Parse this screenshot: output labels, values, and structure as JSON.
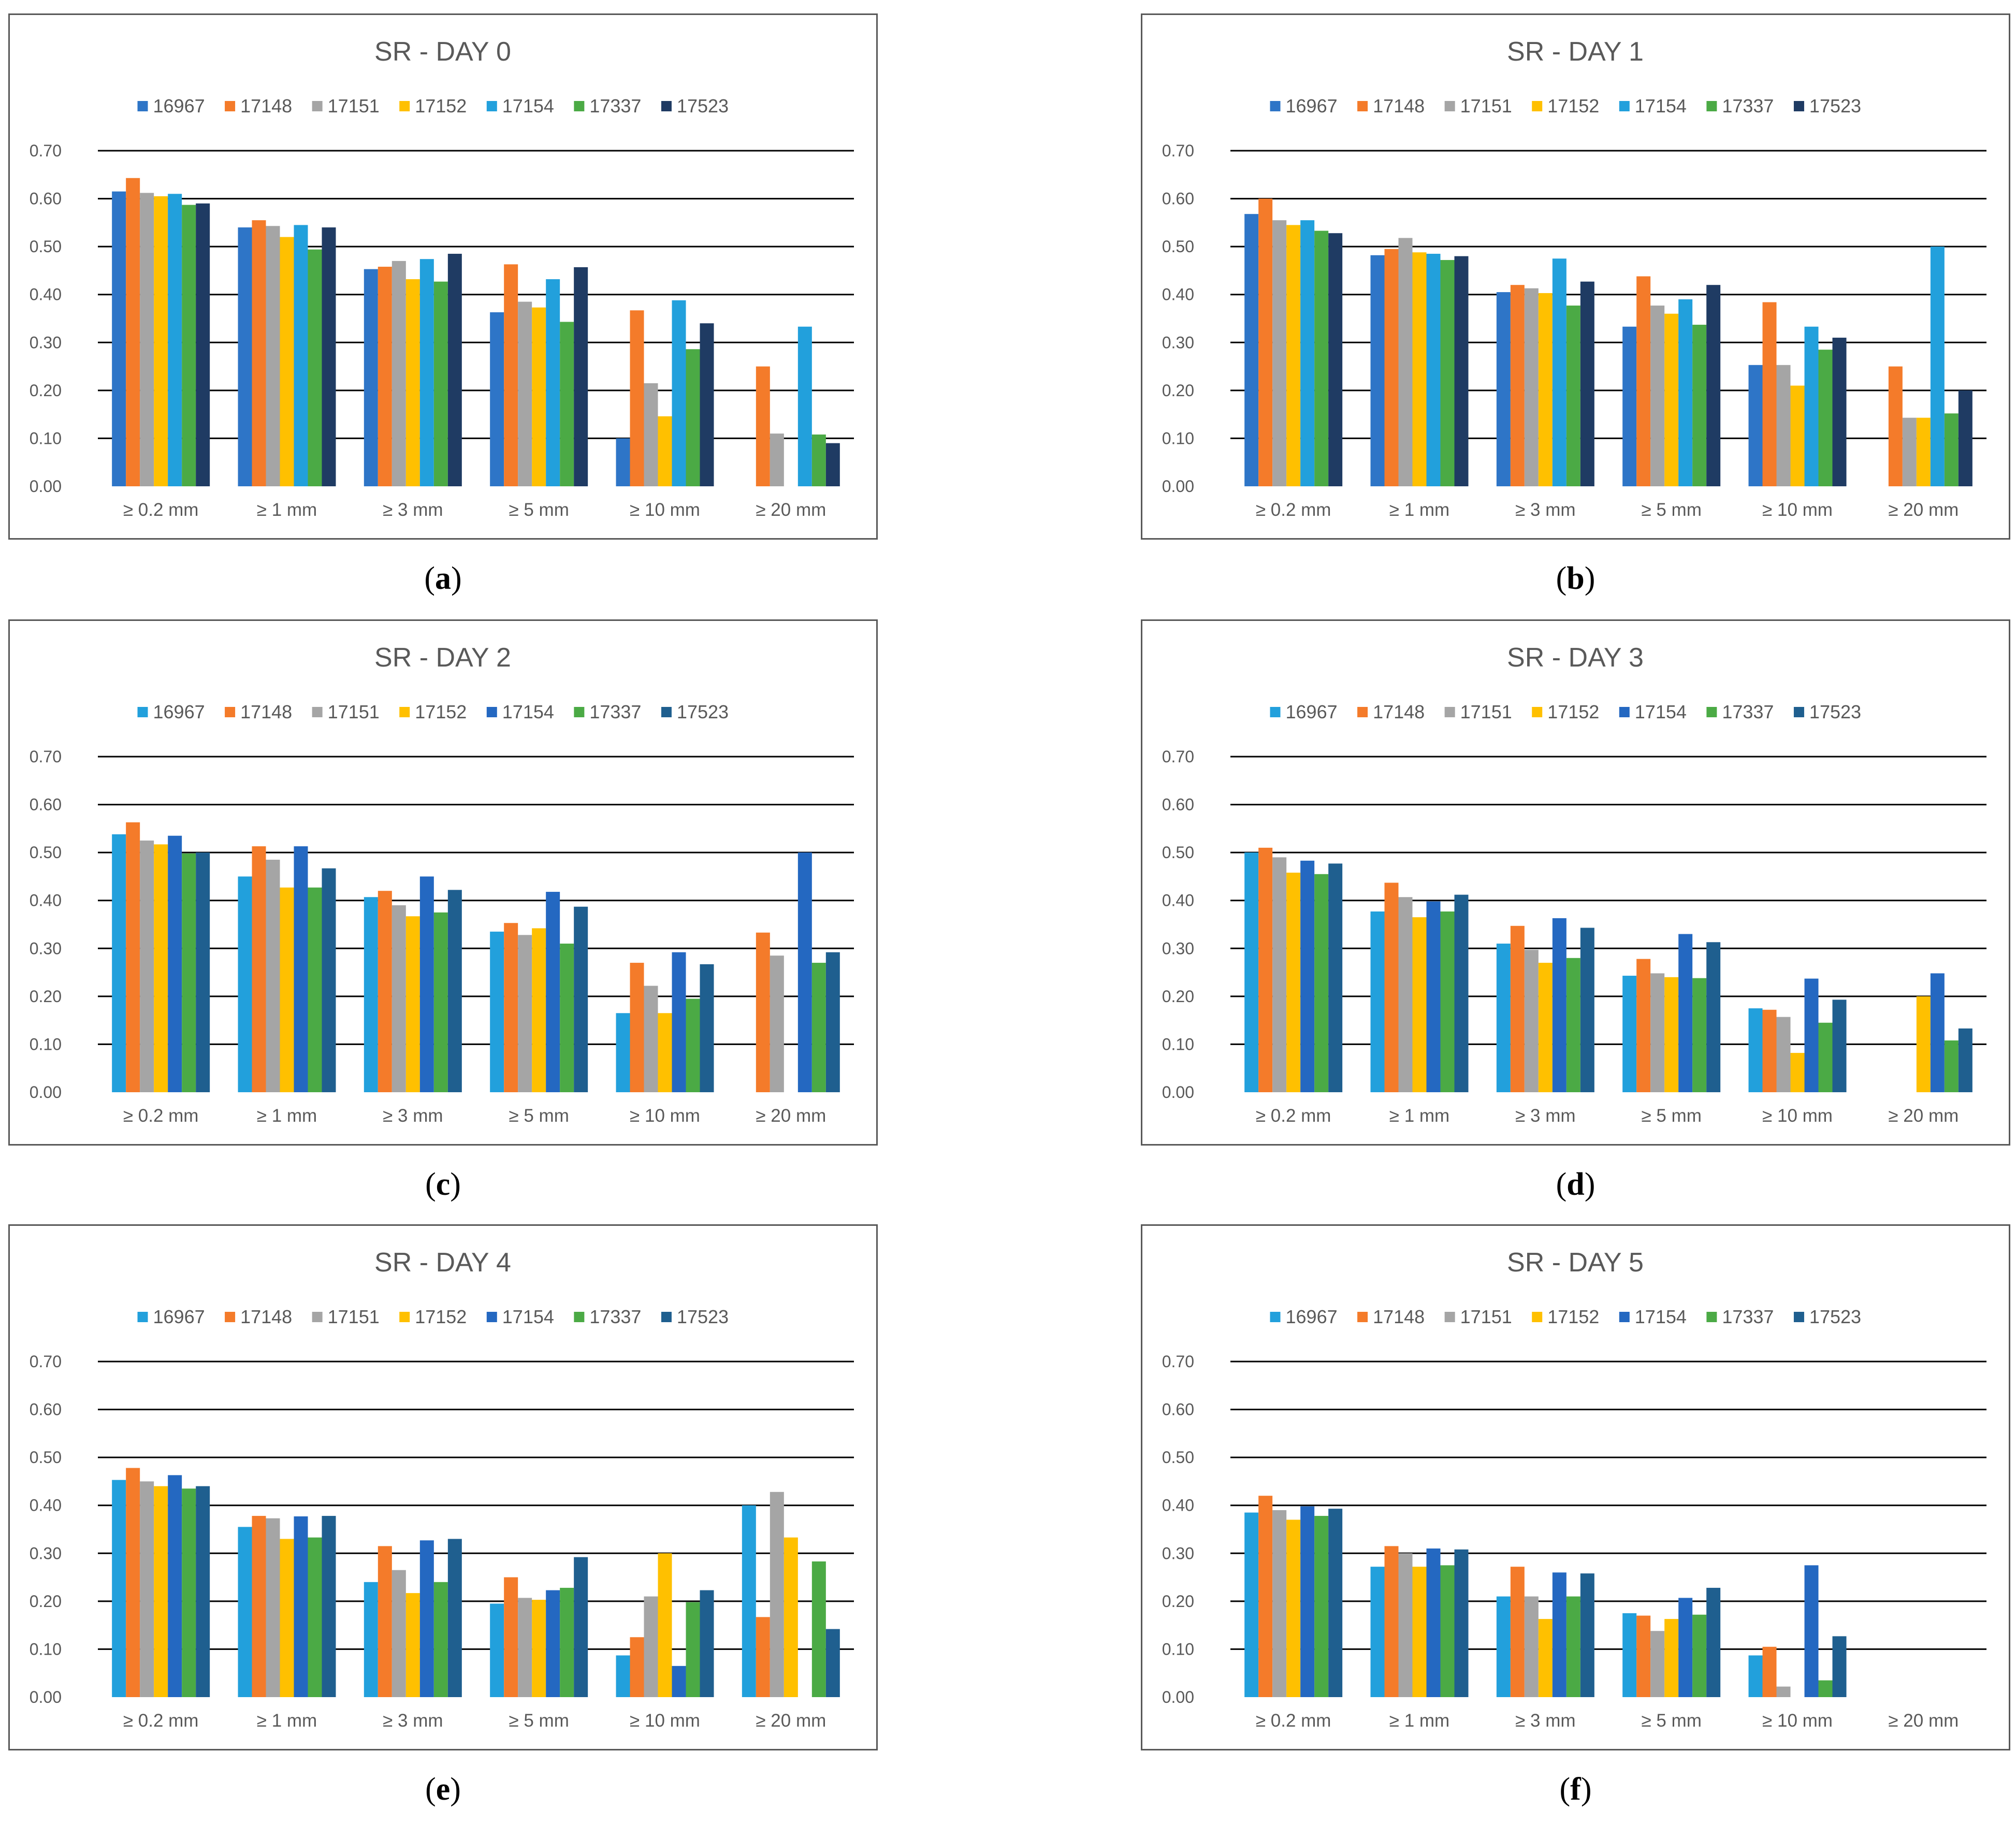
{
  "colors": {
    "set_a": [
      "#2E75C7",
      "#F47B2A",
      "#A5A5A5",
      "#FFC000",
      "#22A0DC",
      "#4BAA45",
      "#1F3B63"
    ],
    "set_b": [
      "#22A0DC",
      "#F47B2A",
      "#A5A5A5",
      "#FFC000",
      "#2468C1",
      "#4BAA45",
      "#1F5F8F"
    ],
    "gridline": "#000000",
    "text": "#595959"
  },
  "chart_data": [
    {
      "type": "bar",
      "panel": "a",
      "title": "SR - DAY 0",
      "categories": [
        "≥ 0.2 mm",
        "≥ 1 mm",
        "≥ 3 mm",
        "≥ 5 mm",
        "≥ 10 mm",
        "≥ 20 mm"
      ],
      "yticks": [
        "0.00",
        "0.10",
        "0.20",
        "0.30",
        "0.40",
        "0.50",
        "0.60",
        "0.70"
      ],
      "ylim": [
        0,
        0.7
      ],
      "palette": "set_a",
      "series": [
        {
          "name": "16967",
          "values": [
            0.615,
            0.54,
            0.453,
            0.363,
            0.1,
            0
          ]
        },
        {
          "name": "17148",
          "values": [
            0.643,
            0.555,
            0.458,
            0.463,
            0.367,
            0.25
          ]
        },
        {
          "name": "17151",
          "values": [
            0.612,
            0.543,
            0.47,
            0.385,
            0.215,
            0.11
          ]
        },
        {
          "name": "17152",
          "values": [
            0.605,
            0.52,
            0.432,
            0.373,
            0.146,
            0
          ]
        },
        {
          "name": "17154",
          "values": [
            0.61,
            0.545,
            0.474,
            0.432,
            0.388,
            0.333
          ]
        },
        {
          "name": "17337",
          "values": [
            0.587,
            0.494,
            0.427,
            0.343,
            0.286,
            0.108
          ]
        },
        {
          "name": "17523",
          "values": [
            0.59,
            0.54,
            0.485,
            0.457,
            0.34,
            0.09
          ]
        }
      ]
    },
    {
      "type": "bar",
      "panel": "b",
      "title": "SR - DAY 1",
      "categories": [
        "≥ 0.2 mm",
        "≥ 1 mm",
        "≥ 3 mm",
        "≥ 5 mm",
        "≥ 10 mm",
        "≥ 20 mm"
      ],
      "yticks": [
        "0.00",
        "0.10",
        "0.20",
        "0.30",
        "0.40",
        "0.50",
        "0.60",
        "0.70"
      ],
      "ylim": [
        0,
        0.7
      ],
      "palette": "set_a",
      "series": [
        {
          "name": "16967",
          "values": [
            0.568,
            0.482,
            0.405,
            0.333,
            0.253,
            0
          ]
        },
        {
          "name": "17148",
          "values": [
            0.6,
            0.495,
            0.42,
            0.438,
            0.384,
            0.25
          ]
        },
        {
          "name": "17151",
          "values": [
            0.555,
            0.518,
            0.413,
            0.377,
            0.253,
            0.143
          ]
        },
        {
          "name": "17152",
          "values": [
            0.545,
            0.488,
            0.403,
            0.36,
            0.21,
            0.143
          ]
        },
        {
          "name": "17154",
          "values": [
            0.555,
            0.485,
            0.475,
            0.39,
            0.333,
            0.5
          ]
        },
        {
          "name": "17337",
          "values": [
            0.533,
            0.472,
            0.377,
            0.337,
            0.285,
            0.152
          ]
        },
        {
          "name": "17523",
          "values": [
            0.528,
            0.48,
            0.427,
            0.42,
            0.31,
            0.2
          ]
        }
      ]
    },
    {
      "type": "bar",
      "panel": "c",
      "title": "SR - DAY 2",
      "categories": [
        "≥ 0.2 mm",
        "≥ 1 mm",
        "≥ 3 mm",
        "≥ 5 mm",
        "≥ 10 mm",
        "≥ 20 mm"
      ],
      "yticks": [
        "0.00",
        "0.10",
        "0.20",
        "0.30",
        "0.40",
        "0.50",
        "0.60",
        "0.70"
      ],
      "ylim": [
        0,
        0.7
      ],
      "palette": "set_b",
      "series": [
        {
          "name": "16967",
          "values": [
            0.538,
            0.45,
            0.407,
            0.335,
            0.165,
            0
          ]
        },
        {
          "name": "17148",
          "values": [
            0.563,
            0.513,
            0.42,
            0.353,
            0.27,
            0.333
          ]
        },
        {
          "name": "17151",
          "values": [
            0.525,
            0.485,
            0.39,
            0.328,
            0.222,
            0.285
          ]
        },
        {
          "name": "17152",
          "values": [
            0.517,
            0.427,
            0.367,
            0.342,
            0.165,
            0
          ]
        },
        {
          "name": "17154",
          "values": [
            0.535,
            0.513,
            0.45,
            0.418,
            0.292,
            0.5
          ]
        },
        {
          "name": "17337",
          "values": [
            0.498,
            0.427,
            0.375,
            0.31,
            0.195,
            0.27
          ]
        },
        {
          "name": "17523",
          "values": [
            0.5,
            0.467,
            0.422,
            0.387,
            0.267,
            0.292
          ]
        }
      ]
    },
    {
      "type": "bar",
      "panel": "d",
      "title": "SR - DAY 3",
      "categories": [
        "≥ 0.2 mm",
        "≥ 1 mm",
        "≥ 3 mm",
        "≥ 5 mm",
        "≥ 10 mm",
        "≥ 20 mm"
      ],
      "yticks": [
        "0.00",
        "0.10",
        "0.20",
        "0.30",
        "0.40",
        "0.50",
        "0.60",
        "0.70"
      ],
      "ylim": [
        0,
        0.7
      ],
      "palette": "set_b",
      "series": [
        {
          "name": "16967",
          "values": [
            0.5,
            0.377,
            0.31,
            0.243,
            0.175,
            0
          ]
        },
        {
          "name": "17148",
          "values": [
            0.51,
            0.437,
            0.347,
            0.278,
            0.172,
            0
          ]
        },
        {
          "name": "17151",
          "values": [
            0.49,
            0.407,
            0.297,
            0.248,
            0.157,
            0
          ]
        },
        {
          "name": "17152",
          "values": [
            0.458,
            0.365,
            0.27,
            0.24,
            0.082,
            0.2
          ]
        },
        {
          "name": "17154",
          "values": [
            0.483,
            0.398,
            0.363,
            0.33,
            0.237,
            0.248
          ]
        },
        {
          "name": "17337",
          "values": [
            0.455,
            0.377,
            0.28,
            0.238,
            0.145,
            0.108
          ]
        },
        {
          "name": "17523",
          "values": [
            0.477,
            0.412,
            0.343,
            0.313,
            0.193,
            0.133
          ]
        }
      ]
    },
    {
      "type": "bar",
      "panel": "e",
      "title": "SR - DAY 4",
      "categories": [
        "≥ 0.2 mm",
        "≥ 1 mm",
        "≥ 3 mm",
        "≥ 5 mm",
        "≥ 10 mm",
        "≥ 20 mm"
      ],
      "yticks": [
        "0.00",
        "0.10",
        "0.20",
        "0.30",
        "0.40",
        "0.50",
        "0.60",
        "0.70"
      ],
      "ylim": [
        0,
        0.7
      ],
      "palette": "set_b",
      "series": [
        {
          "name": "16967",
          "values": [
            0.453,
            0.355,
            0.24,
            0.195,
            0.087,
            0.4
          ]
        },
        {
          "name": "17148",
          "values": [
            0.478,
            0.378,
            0.315,
            0.25,
            0.125,
            0.167
          ]
        },
        {
          "name": "17151",
          "values": [
            0.45,
            0.373,
            0.265,
            0.207,
            0.21,
            0.428
          ]
        },
        {
          "name": "17152",
          "values": [
            0.44,
            0.33,
            0.217,
            0.203,
            0.3,
            0.333
          ]
        },
        {
          "name": "17154",
          "values": [
            0.463,
            0.377,
            0.327,
            0.223,
            0.065,
            0
          ]
        },
        {
          "name": "17337",
          "values": [
            0.435,
            0.333,
            0.24,
            0.228,
            0.198,
            0.283
          ]
        },
        {
          "name": "17523",
          "values": [
            0.44,
            0.378,
            0.33,
            0.292,
            0.223,
            0.142
          ]
        }
      ]
    },
    {
      "type": "bar",
      "panel": "f",
      "title": "SR - DAY 5",
      "categories": [
        "≥ 0.2 mm",
        "≥ 1 mm",
        "≥ 3 mm",
        "≥ 5 mm",
        "≥ 10 mm",
        "≥ 20 mm"
      ],
      "yticks": [
        "0.00",
        "0.10",
        "0.20",
        "0.30",
        "0.40",
        "0.50",
        "0.60",
        "0.70"
      ],
      "ylim": [
        0,
        0.7
      ],
      "palette": "set_b",
      "series": [
        {
          "name": "16967",
          "values": [
            0.385,
            0.272,
            0.21,
            0.175,
            0.087,
            0
          ]
        },
        {
          "name": "17148",
          "values": [
            0.42,
            0.315,
            0.272,
            0.17,
            0.105,
            0
          ]
        },
        {
          "name": "17151",
          "values": [
            0.39,
            0.3,
            0.21,
            0.138,
            0.022,
            0
          ]
        },
        {
          "name": "17152",
          "values": [
            0.37,
            0.272,
            0.163,
            0.163,
            0,
            0
          ]
        },
        {
          "name": "17154",
          "values": [
            0.398,
            0.31,
            0.26,
            0.207,
            0.275,
            0
          ]
        },
        {
          "name": "17337",
          "values": [
            0.378,
            0.275,
            0.21,
            0.172,
            0.035,
            0
          ]
        },
        {
          "name": "17523",
          "values": [
            0.393,
            0.308,
            0.258,
            0.228,
            0.127,
            0
          ]
        }
      ]
    }
  ],
  "captions": [
    "a",
    "b",
    "c",
    "d",
    "e",
    "f"
  ]
}
